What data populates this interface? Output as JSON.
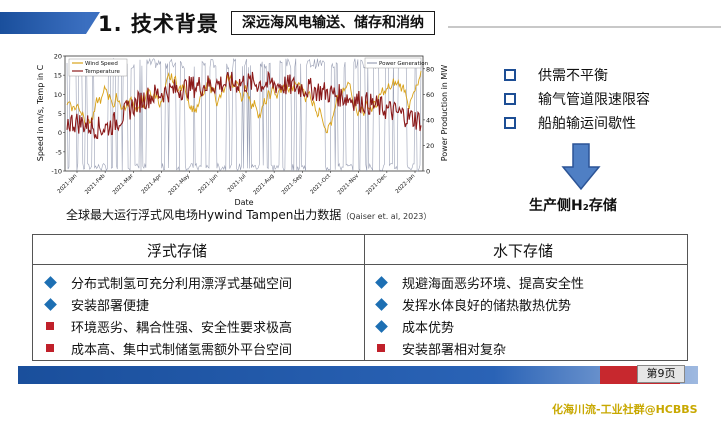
{
  "header": {
    "title": "1. 技术背景",
    "subtitle": "深远海风电输送、储存和消纳"
  },
  "chart_caption": {
    "main": "全球最大运行浮式风电场Hywind Tampen出力数据",
    "cite": "（Qaiser et. al, 2023）"
  },
  "chart_data": {
    "type": "line",
    "x_label": "Date",
    "y_left_label": "Speed in m/s, Temp in C",
    "y_right_label": "Power Production in MW",
    "y_left_ticks": [
      "20",
      "15",
      "10",
      "5",
      "0",
      "-5",
      "-10"
    ],
    "y_right_ticks": [
      "80",
      "60",
      "40",
      "20",
      "0"
    ],
    "x_ticks": [
      "2021-Jan",
      "2021-Feb",
      "2021-Mar",
      "2021-Apr",
      "2021-May",
      "2021-Jun",
      "2021-Jul",
      "2021-Aug",
      "2021-Sep",
      "2021-Oct",
      "2021-Nov",
      "2021-Dec",
      "2022-Jan"
    ],
    "legend_left": [
      "Wind Speed",
      "Temperature"
    ],
    "legend_right": [
      "Power Generation"
    ],
    "y_left_range": [
      -10,
      20
    ],
    "y_right_range": [
      0,
      90
    ],
    "colors": {
      "wind": "#d9a21a",
      "temp": "#8b1a1a",
      "power": "#9aa0b5"
    }
  },
  "right_bullets": [
    "供需不平衡",
    "输气管道限速限容",
    "船舶输运间歇性"
  ],
  "h2_storage": "生产侧H₂存储",
  "table": {
    "col1_header": "浮式存储",
    "col2_header": "水下存储",
    "col1_items": [
      {
        "text": "分布式制氢可充分利用漂浮式基础空间",
        "kind": "pro"
      },
      {
        "text": "安装部署便捷",
        "kind": "pro"
      },
      {
        "text": "环境恶劣、耦合性强、安全性要求极高",
        "kind": "con"
      },
      {
        "text": "成本高、集中式制储氢需额外平台空间",
        "kind": "con"
      }
    ],
    "col2_items": [
      {
        "text": "规避海面恶劣环境、提高安全性",
        "kind": "pro"
      },
      {
        "text": "发挥水体良好的储热散热优势",
        "kind": "pro"
      },
      {
        "text": "成本优势",
        "kind": "pro"
      },
      {
        "text": "安装部署相对复杂",
        "kind": "con"
      }
    ]
  },
  "footer": {
    "page": "第9页",
    "watermark": "化海川流-工业社群@HCBBS"
  }
}
